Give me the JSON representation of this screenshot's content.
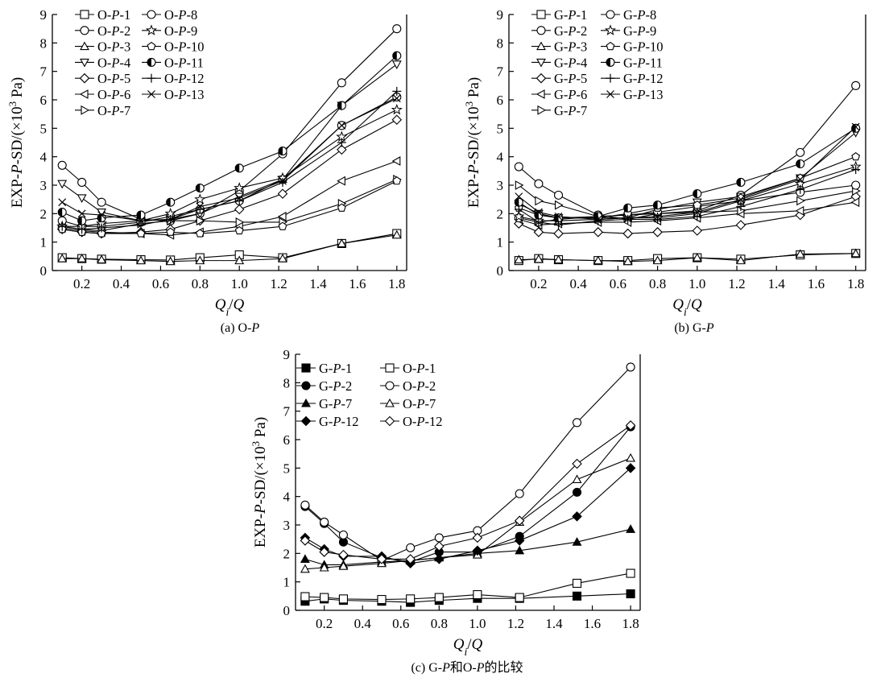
{
  "chart_data": [
    {
      "type": "line",
      "id": "a",
      "caption": "(a) O-P",
      "xlabel": "Qi/Q",
      "ylabel": "EXP-P-SD/(×10³ Pa)",
      "xlim": [
        0.05,
        1.85
      ],
      "ylim": [
        0,
        9
      ],
      "xticks": [
        0.2,
        0.4,
        0.6,
        0.8,
        1.0,
        1.2,
        1.4,
        1.6,
        1.8
      ],
      "xtick_labels": [
        "0.2",
        "0.4",
        "0.6",
        "0.8",
        "1.0",
        "1.2",
        "1.4",
        "1.6",
        "1.8"
      ],
      "yticks": [
        0,
        1,
        2,
        3,
        4,
        5,
        6,
        7,
        8,
        9
      ],
      "ytick_labels": [
        "0",
        "1",
        "2",
        "3",
        "4",
        "5",
        "6",
        "7",
        "8",
        "9"
      ],
      "grid": false,
      "legend_position": "top-left",
      "x": [
        0.1,
        0.2,
        0.3,
        0.5,
        0.65,
        0.8,
        1.0,
        1.22,
        1.52,
        1.8
      ],
      "series": [
        {
          "name": "O-P-1",
          "prefix": "O-",
          "suffix": "-1",
          "marker": "square",
          "values": [
            0.45,
            0.42,
            0.4,
            0.38,
            0.37,
            0.45,
            0.55,
            0.45,
            0.95,
            1.3
          ]
        },
        {
          "name": "O-P-2",
          "prefix": "O-",
          "suffix": "-2",
          "marker": "circle",
          "values": [
            3.7,
            3.1,
            2.4,
            1.8,
            1.75,
            2.0,
            2.8,
            4.1,
            6.6,
            8.5
          ]
        },
        {
          "name": "O-P-3",
          "prefix": "O-",
          "suffix": "-3",
          "marker": "triangle-up",
          "values": [
            0.42,
            0.42,
            0.38,
            0.35,
            0.32,
            0.35,
            0.35,
            0.42,
            0.95,
            1.25
          ]
        },
        {
          "name": "O-P-4",
          "prefix": "O-",
          "suffix": "-4",
          "marker": "triangle-down",
          "values": [
            3.05,
            2.55,
            2.05,
            1.75,
            1.8,
            2.0,
            2.6,
            3.2,
            5.8,
            7.25
          ]
        },
        {
          "name": "O-P-5",
          "prefix": "O-",
          "suffix": "-5",
          "marker": "diamond",
          "values": [
            1.45,
            1.35,
            1.3,
            1.35,
            1.45,
            1.75,
            2.15,
            2.7,
            4.25,
            5.3
          ]
        },
        {
          "name": "O-P-6",
          "prefix": "O-",
          "suffix": "-6",
          "marker": "triangle-left",
          "values": [
            1.5,
            1.4,
            1.35,
            1.3,
            1.25,
            1.35,
            1.55,
            1.9,
            3.15,
            3.85
          ]
        },
        {
          "name": "O-P-7",
          "prefix": "O-",
          "suffix": "-7",
          "marker": "triangle-right",
          "values": [
            1.55,
            1.45,
            1.4,
            1.65,
            1.75,
            1.75,
            1.7,
            1.7,
            2.35,
            3.2
          ]
        },
        {
          "name": "O-P-8",
          "prefix": "O-",
          "suffix": "-8",
          "marker": "circle",
          "values": [
            1.75,
            1.55,
            1.55,
            1.7,
            1.9,
            2.15,
            2.45,
            3.2,
            5.1,
            6.1
          ]
        },
        {
          "name": "O-P-9",
          "prefix": "O-",
          "suffix": "-9",
          "marker": "star",
          "values": [
            1.55,
            1.55,
            1.65,
            1.75,
            2.0,
            2.5,
            2.9,
            3.25,
            4.7,
            5.65
          ]
        },
        {
          "name": "O-P-10",
          "prefix": "O-",
          "suffix": "-10",
          "marker": "pentagon",
          "values": [
            1.45,
            1.35,
            1.3,
            1.3,
            1.35,
            1.3,
            1.4,
            1.55,
            2.2,
            3.15
          ]
        },
        {
          "name": "O-P-11",
          "prefix": "O-",
          "suffix": "-11",
          "marker": "half-circle",
          "values": [
            2.05,
            1.75,
            1.85,
            1.95,
            2.4,
            2.9,
            3.6,
            4.2,
            5.8,
            7.55
          ]
        },
        {
          "name": "O-P-12",
          "prefix": "O-",
          "suffix": "-12",
          "marker": "plus",
          "values": [
            1.55,
            1.45,
            1.5,
            1.6,
            1.8,
            2.15,
            2.45,
            3.1,
            4.5,
            6.3
          ]
        },
        {
          "name": "O-P-13",
          "prefix": "O-",
          "suffix": "-13",
          "marker": "cross",
          "values": [
            2.4,
            2.0,
            1.95,
            1.75,
            1.8,
            2.25,
            2.55,
            3.15,
            5.1,
            6.05
          ]
        }
      ]
    },
    {
      "type": "line",
      "id": "b",
      "caption": "(b) G-P",
      "xlabel": "Qi/Q",
      "ylabel": "EXP-P-SD/(×10³ Pa)",
      "xlim": [
        0.05,
        1.85
      ],
      "ylim": [
        0,
        9
      ],
      "xticks": [
        0.2,
        0.4,
        0.6,
        0.8,
        1.0,
        1.2,
        1.4,
        1.6,
        1.8
      ],
      "xtick_labels": [
        "0.2",
        "0.4",
        "0.6",
        "0.8",
        "1.0",
        "1.2",
        "1.4",
        "1.6",
        "1.8"
      ],
      "yticks": [
        0,
        1,
        2,
        3,
        4,
        5,
        6,
        7,
        8,
        9
      ],
      "ytick_labels": [
        "0",
        "1",
        "2",
        "3",
        "4",
        "5",
        "6",
        "7",
        "8",
        "9"
      ],
      "grid": false,
      "legend_position": "top-left",
      "x": [
        0.1,
        0.2,
        0.3,
        0.5,
        0.65,
        0.8,
        1.0,
        1.22,
        1.52,
        1.8
      ],
      "series": [
        {
          "name": "G-P-1",
          "prefix": "G-",
          "suffix": "-1",
          "marker": "square",
          "values": [
            0.35,
            0.42,
            0.38,
            0.35,
            0.35,
            0.42,
            0.45,
            0.4,
            0.55,
            0.6
          ]
        },
        {
          "name": "G-P-2",
          "prefix": "G-",
          "suffix": "-2",
          "marker": "circle",
          "values": [
            3.65,
            3.05,
            2.65,
            1.95,
            1.8,
            2.0,
            2.1,
            2.65,
            4.15,
            6.5
          ]
        },
        {
          "name": "G-P-3",
          "prefix": "G-",
          "suffix": "-3",
          "marker": "triangle-up",
          "values": [
            0.38,
            0.4,
            0.38,
            0.35,
            0.32,
            0.35,
            0.45,
            0.35,
            0.58,
            0.6
          ]
        },
        {
          "name": "G-P-4",
          "prefix": "G-",
          "suffix": "-4",
          "marker": "triangle-down",
          "values": [
            2.35,
            2.0,
            1.85,
            1.85,
            1.85,
            2.15,
            2.4,
            2.6,
            3.25,
            4.85
          ]
        },
        {
          "name": "G-P-5",
          "prefix": "G-",
          "suffix": "-5",
          "marker": "diamond",
          "values": [
            1.65,
            1.35,
            1.3,
            1.35,
            1.3,
            1.35,
            1.4,
            1.6,
            1.95,
            2.6
          ]
        },
        {
          "name": "G-P-6",
          "prefix": "G-",
          "suffix": "-6",
          "marker": "triangle-left",
          "values": [
            1.8,
            1.6,
            1.65,
            1.7,
            1.7,
            1.75,
            1.85,
            2.0,
            2.1,
            2.4
          ]
        },
        {
          "name": "G-P-7",
          "prefix": "G-",
          "suffix": "-7",
          "marker": "triangle-right",
          "values": [
            3.0,
            2.45,
            2.3,
            1.9,
            1.95,
            2.0,
            2.05,
            2.1,
            2.45,
            2.8
          ]
        },
        {
          "name": "G-P-8",
          "prefix": "G-",
          "suffix": "-8",
          "marker": "circle",
          "values": [
            1.85,
            1.7,
            1.8,
            1.9,
            1.95,
            2.05,
            2.25,
            2.45,
            2.75,
            3.0
          ]
        },
        {
          "name": "G-P-9",
          "prefix": "G-",
          "suffix": "-9",
          "marker": "star",
          "values": [
            1.9,
            1.75,
            1.75,
            1.8,
            1.85,
            1.85,
            2.0,
            2.45,
            3.05,
            3.65
          ]
        },
        {
          "name": "G-P-10",
          "prefix": "G-",
          "suffix": "-10",
          "marker": "pentagon",
          "values": [
            2.2,
            1.95,
            1.85,
            1.85,
            2.0,
            2.2,
            2.3,
            2.55,
            3.25,
            4.0
          ]
        },
        {
          "name": "G-P-11",
          "prefix": "G-",
          "suffix": "-11",
          "marker": "half-circle",
          "values": [
            2.4,
            1.95,
            1.85,
            1.9,
            2.2,
            2.3,
            2.7,
            3.1,
            3.75,
            5.0
          ]
        },
        {
          "name": "G-P-12",
          "prefix": "G-",
          "suffix": "-12",
          "marker": "plus",
          "values": [
            2.15,
            1.7,
            1.6,
            1.75,
            1.8,
            1.8,
            1.9,
            2.25,
            2.85,
            3.55
          ]
        },
        {
          "name": "G-P-13",
          "prefix": "G-",
          "suffix": "-13",
          "marker": "cross",
          "values": [
            2.6,
            2.05,
            1.9,
            1.8,
            1.85,
            1.9,
            2.05,
            2.5,
            3.2,
            5.05
          ]
        }
      ]
    },
    {
      "type": "line",
      "id": "c",
      "caption": "(c) G-P和O-P的比较",
      "xlabel": "Qi/Q",
      "ylabel": "EXP-P-SD/(×10³ Pa)",
      "xlim": [
        0.05,
        1.85
      ],
      "ylim": [
        0,
        9
      ],
      "xticks": [
        0.2,
        0.4,
        0.6,
        0.8,
        1.0,
        1.2,
        1.4,
        1.6,
        1.8
      ],
      "xtick_labels": [
        "0.2",
        "0.4",
        "0.6",
        "0.8",
        "1.0",
        "1.2",
        "1.4",
        "1.6",
        "1.8"
      ],
      "yticks": [
        0,
        1,
        2,
        3,
        4,
        5,
        6,
        7,
        8,
        9
      ],
      "ytick_labels": [
        "0",
        "1",
        "2",
        "3",
        "4",
        "5",
        "6",
        "7",
        "8",
        "9"
      ],
      "grid": false,
      "legend_position": "top-left",
      "x": [
        0.1,
        0.2,
        0.3,
        0.5,
        0.65,
        0.8,
        1.0,
        1.22,
        1.52,
        1.8
      ],
      "series": [
        {
          "name": "G-P-1",
          "prefix": "G-",
          "suffix": "-1",
          "marker": "square-filled",
          "values": [
            0.32,
            0.4,
            0.35,
            0.32,
            0.28,
            0.35,
            0.42,
            0.42,
            0.5,
            0.58
          ]
        },
        {
          "name": "O-P-1",
          "prefix": "O-",
          "suffix": "-1",
          "marker": "square",
          "values": [
            0.48,
            0.45,
            0.4,
            0.38,
            0.4,
            0.45,
            0.55,
            0.45,
            0.95,
            1.3
          ]
        },
        {
          "name": "G-P-2",
          "prefix": "G-",
          "suffix": "-2",
          "marker": "circle-filled",
          "values": [
            3.65,
            3.05,
            2.4,
            1.85,
            1.7,
            2.05,
            2.05,
            2.6,
            4.15,
            6.45
          ]
        },
        {
          "name": "O-P-2",
          "prefix": "O-",
          "suffix": "-2",
          "marker": "circle",
          "values": [
            3.7,
            3.1,
            2.65,
            1.75,
            2.2,
            2.55,
            2.8,
            4.1,
            6.6,
            8.55
          ]
        },
        {
          "name": "G-P-7",
          "prefix": "G-",
          "suffix": "-7",
          "marker": "triangle-filled",
          "values": [
            1.8,
            1.6,
            1.6,
            1.7,
            1.75,
            1.85,
            2.0,
            2.1,
            2.4,
            2.85
          ]
        },
        {
          "name": "O-P-7",
          "prefix": "O-",
          "suffix": "-7",
          "marker": "triangle-up",
          "values": [
            1.45,
            1.5,
            1.55,
            1.65,
            1.75,
            1.85,
            1.95,
            3.1,
            4.6,
            5.35
          ]
        },
        {
          "name": "G-P-12",
          "prefix": "G-",
          "suffix": "-12",
          "marker": "diamond-filled",
          "values": [
            2.55,
            2.15,
            1.9,
            1.9,
            1.65,
            1.8,
            2.1,
            2.45,
            3.3,
            5.0
          ]
        },
        {
          "name": "O-P-12",
          "prefix": "O-",
          "suffix": "-12",
          "marker": "diamond",
          "values": [
            2.45,
            2.05,
            1.95,
            1.8,
            1.8,
            2.25,
            2.55,
            3.15,
            5.15,
            6.5
          ]
        }
      ]
    }
  ]
}
